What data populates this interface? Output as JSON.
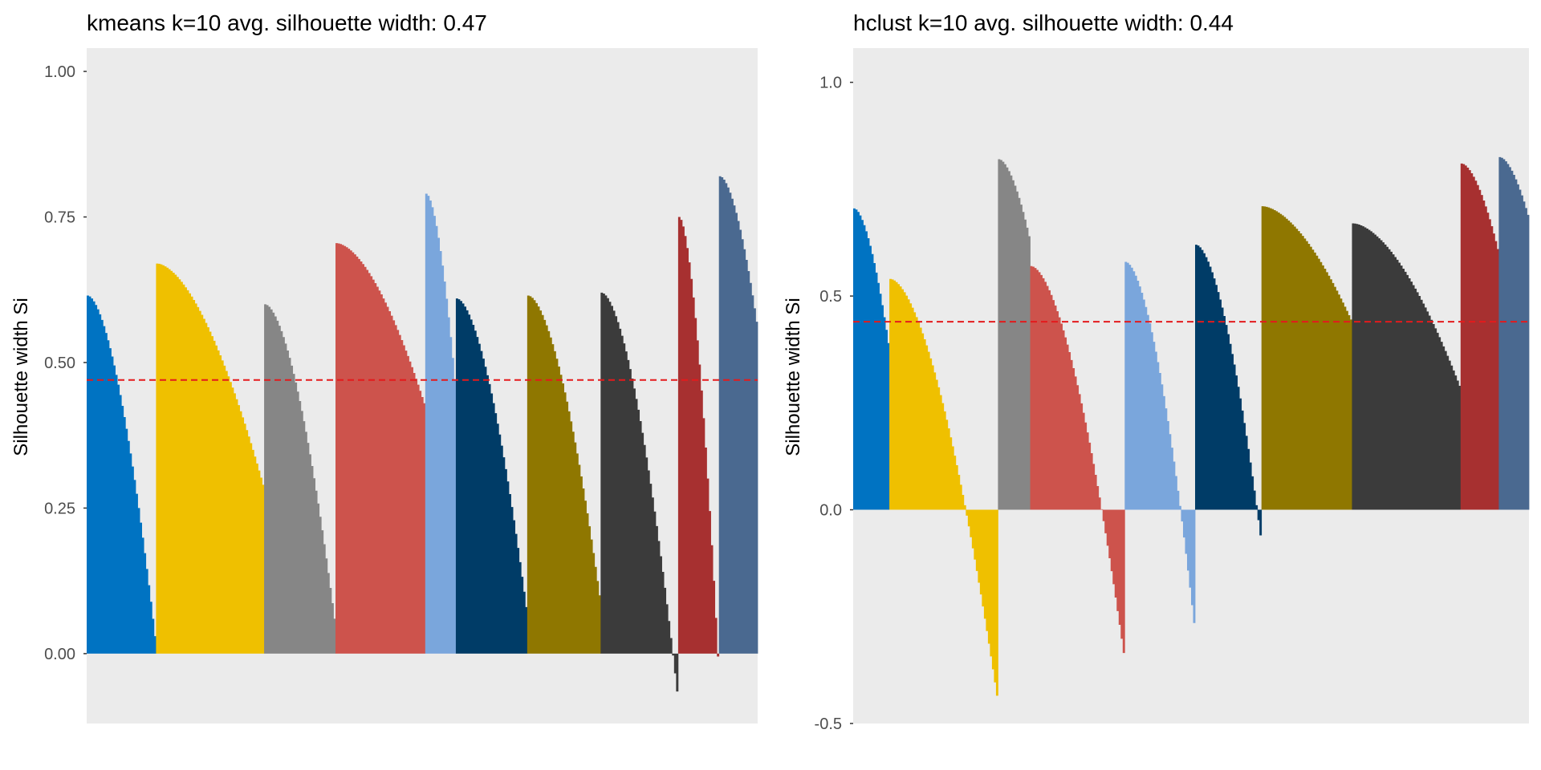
{
  "chart_data": [
    {
      "type": "bar",
      "title": "kmeans k=10 avg. silhouette width: 0.47",
      "ylabel": "Silhouette width Si",
      "xlabel": "",
      "ylim": [
        -0.12,
        1.04
      ],
      "yticks": [
        0.0,
        0.25,
        0.5,
        0.75,
        1.0
      ],
      "ytick_labels": [
        "0.00",
        "0.25",
        "0.50",
        "0.75",
        "1.00"
      ],
      "avg_silhouette": 0.47,
      "grid": false,
      "panel_background": "#ebebeb",
      "reference_line_color": "#e41a1c",
      "clusters": [
        {
          "cluster": 1,
          "color": "#0073c2",
          "size": 34,
          "max": 0.615,
          "min": 0.03
        },
        {
          "cluster": 2,
          "color": "#efc000",
          "size": 53,
          "max": 0.67,
          "min": 0.29
        },
        {
          "cluster": 3,
          "color": "#868686",
          "size": 35,
          "max": 0.6,
          "min": 0.06
        },
        {
          "cluster": 4,
          "color": "#cd534c",
          "size": 44,
          "max": 0.705,
          "min": 0.43
        },
        {
          "cluster": 5,
          "color": "#7aa6dc",
          "size": 15,
          "max": 0.79,
          "min": 0.47
        },
        {
          "cluster": 6,
          "color": "#003c67",
          "size": 35,
          "max": 0.61,
          "min": 0.08
        },
        {
          "cluster": 7,
          "color": "#8f7700",
          "size": 36,
          "max": 0.615,
          "min": 0.1
        },
        {
          "cluster": 8,
          "color": "#3b3b3b",
          "size": 38,
          "max": 0.62,
          "min": -0.065
        },
        {
          "cluster": 9,
          "color": "#a73030",
          "size": 20,
          "max": 0.75,
          "min": -0.005
        },
        {
          "cluster": 10,
          "color": "#4a6990",
          "size": 19,
          "max": 0.82,
          "min": 0.57
        }
      ]
    },
    {
      "type": "bar",
      "title": "hclust k=10 avg. silhouette width: 0.44",
      "ylabel": "Silhouette width Si",
      "xlabel": "",
      "ylim": [
        -0.5,
        1.08
      ],
      "yticks": [
        -0.5,
        0.0,
        0.5,
        1.0
      ],
      "ytick_labels": [
        "-0.5",
        "0.0",
        "0.5",
        "1.0"
      ],
      "avg_silhouette": 0.44,
      "grid": false,
      "panel_background": "#ebebeb",
      "reference_line_color": "#e41a1c",
      "clusters": [
        {
          "cluster": 1,
          "color": "#0073c2",
          "size": 18,
          "max": 0.705,
          "min": 0.39
        },
        {
          "cluster": 2,
          "color": "#efc000",
          "size": 54,
          "max": 0.54,
          "min": -0.435
        },
        {
          "cluster": 3,
          "color": "#868686",
          "size": 16,
          "max": 0.82,
          "min": 0.64
        },
        {
          "cluster": 4,
          "color": "#cd534c",
          "size": 47,
          "max": 0.57,
          "min": -0.335
        },
        {
          "cluster": 5,
          "color": "#7aa6dc",
          "size": 35,
          "max": 0.58,
          "min": -0.265
        },
        {
          "cluster": 6,
          "color": "#003c67",
          "size": 33,
          "max": 0.62,
          "min": -0.06
        },
        {
          "cluster": 7,
          "color": "#8f7700",
          "size": 45,
          "max": 0.71,
          "min": 0.445
        },
        {
          "cluster": 8,
          "color": "#3b3b3b",
          "size": 54,
          "max": 0.67,
          "min": 0.29
        },
        {
          "cluster": 9,
          "color": "#a73030",
          "size": 19,
          "max": 0.81,
          "min": 0.61
        },
        {
          "cluster": 10,
          "color": "#4a6990",
          "size": 15,
          "max": 0.825,
          "min": 0.69
        }
      ]
    }
  ]
}
